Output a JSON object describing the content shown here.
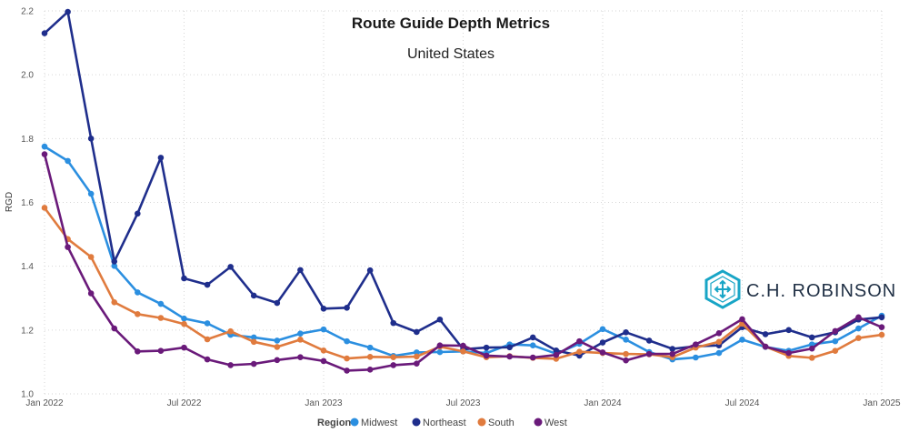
{
  "header": {
    "title": "Route Guide Depth Metrics",
    "subtitle": "United States"
  },
  "logo": {
    "text": "C.H. ROBINSON",
    "icon": "ch-robinson-cube-icon",
    "color": "#18a5c6"
  },
  "legend": {
    "title": "Region"
  },
  "chart_data": {
    "type": "line",
    "title": "Route Guide Depth Metrics",
    "subtitle": "United States",
    "ylabel": "RGD",
    "xlabel": "",
    "ylim": [
      1.0,
      2.2
    ],
    "yticks": [
      "1.0",
      "1.2",
      "1.4",
      "1.6",
      "1.8",
      "2.0",
      "2.2"
    ],
    "xticks": [
      "Jan 2022",
      "Jul 2022",
      "Jan 2023",
      "Jul 2023",
      "Jan 2024",
      "Jul 2024",
      "Jan 2025"
    ],
    "x": [
      "2022-01",
      "2022-02",
      "2022-03",
      "2022-04",
      "2022-05",
      "2022-06",
      "2022-07",
      "2022-08",
      "2022-09",
      "2022-10",
      "2022-11",
      "2022-12",
      "2023-01",
      "2023-02",
      "2023-03",
      "2023-04",
      "2023-05",
      "2023-06",
      "2023-07",
      "2023-08",
      "2023-09",
      "2023-10",
      "2023-11",
      "2023-12",
      "2024-01",
      "2024-02",
      "2024-03",
      "2024-04",
      "2024-05",
      "2024-06",
      "2024-07",
      "2024-08",
      "2024-09",
      "2024-10",
      "2024-11",
      "2024-12",
      "2025-01"
    ],
    "grid": "dotted",
    "legend_position": "bottom",
    "series": [
      {
        "name": "Midwest",
        "color": "#2b8fe0",
        "values": [
          1.775,
          1.73,
          1.627,
          1.401,
          1.318,
          1.282,
          1.236,
          1.221,
          1.185,
          1.177,
          1.167,
          1.189,
          1.202,
          1.165,
          1.145,
          1.119,
          1.13,
          1.131,
          1.133,
          1.128,
          1.155,
          1.152,
          1.126,
          1.157,
          1.203,
          1.17,
          1.131,
          1.108,
          1.114,
          1.128,
          1.17,
          1.147,
          1.135,
          1.155,
          1.165,
          1.205,
          1.245
        ]
      },
      {
        "name": "Northeast",
        "color": "#1f2e8c",
        "values": [
          2.13,
          2.197,
          1.8,
          1.415,
          1.565,
          1.74,
          1.362,
          1.342,
          1.398,
          1.308,
          1.285,
          1.388,
          1.267,
          1.27,
          1.387,
          1.222,
          1.194,
          1.233,
          1.14,
          1.145,
          1.146,
          1.177,
          1.136,
          1.12,
          1.161,
          1.193,
          1.167,
          1.141,
          1.149,
          1.152,
          1.209,
          1.187,
          1.2,
          1.177,
          1.193,
          1.233,
          1.24
        ]
      },
      {
        "name": "South",
        "color": "#e07b3e",
        "values": [
          1.583,
          1.485,
          1.429,
          1.287,
          1.25,
          1.238,
          1.219,
          1.171,
          1.196,
          1.163,
          1.147,
          1.17,
          1.136,
          1.111,
          1.116,
          1.115,
          1.117,
          1.148,
          1.133,
          1.115,
          1.118,
          1.113,
          1.11,
          1.132,
          1.128,
          1.125,
          1.124,
          1.115,
          1.145,
          1.163,
          1.22,
          1.148,
          1.119,
          1.113,
          1.135,
          1.175,
          1.185
        ]
      },
      {
        "name": "West",
        "color": "#6a1a7a",
        "values": [
          1.751,
          1.46,
          1.315,
          1.205,
          1.133,
          1.135,
          1.145,
          1.108,
          1.09,
          1.094,
          1.106,
          1.115,
          1.103,
          1.073,
          1.076,
          1.09,
          1.095,
          1.152,
          1.151,
          1.12,
          1.117,
          1.114,
          1.122,
          1.165,
          1.13,
          1.105,
          1.125,
          1.125,
          1.155,
          1.19,
          1.234,
          1.148,
          1.128,
          1.142,
          1.197,
          1.24,
          1.209
        ]
      }
    ]
  }
}
